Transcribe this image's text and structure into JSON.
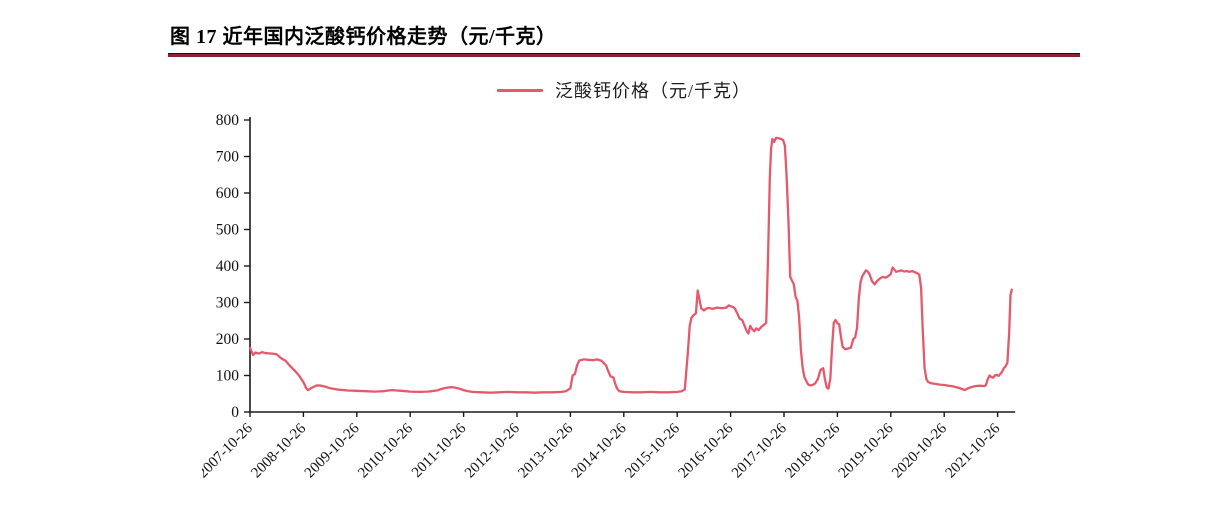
{
  "figure": {
    "title": "图 17 近年国内泛酸钙价格走势（元/千克）",
    "accent_rule_color": "#8e2132"
  },
  "chart_data": {
    "type": "line",
    "title": "图 17 近年国内泛酸钙价格走势（元/千克）",
    "xlabel": "",
    "ylabel": "",
    "ylim": [
      0,
      800
    ],
    "y_ticks": [
      0,
      100,
      200,
      300,
      400,
      500,
      600,
      700,
      800
    ],
    "grid": false,
    "legend": {
      "position": "top-center",
      "entries": [
        "泛酸钙价格（元/千克）"
      ]
    },
    "x_tick_labels": [
      "2007-10-26",
      "2008-10-26",
      "2009-10-26",
      "2010-10-26",
      "2011-10-26",
      "2012-10-26",
      "2013-10-26",
      "2014-10-26",
      "2015-10-26",
      "2016-10-26",
      "2017-10-26",
      "2018-10-26",
      "2019-10-26",
      "2020-10-26",
      "2021-10-26"
    ],
    "x_tick_interval_months": 12,
    "x_range_months": [
      0,
      171.5
    ],
    "series": [
      {
        "name": "泛酸钙价格（元/千克）",
        "color": "#e4596b",
        "x_unit": "months since 2007-10-26",
        "points": [
          [
            0,
            176
          ],
          [
            0.7,
            156
          ],
          [
            1.2,
            163
          ],
          [
            2,
            160
          ],
          [
            2.7,
            164
          ],
          [
            3.5,
            161
          ],
          [
            5,
            160
          ],
          [
            6,
            158
          ],
          [
            7,
            147
          ],
          [
            8,
            140
          ],
          [
            9,
            126
          ],
          [
            10,
            114
          ],
          [
            11,
            100
          ],
          [
            12,
            82
          ],
          [
            12.6,
            66
          ],
          [
            13,
            60
          ],
          [
            14,
            67
          ],
          [
            15,
            73
          ],
          [
            16,
            72
          ],
          [
            17,
            69
          ],
          [
            18,
            65
          ],
          [
            19,
            63
          ],
          [
            20,
            61
          ],
          [
            22,
            59
          ],
          [
            24,
            58
          ],
          [
            26,
            57
          ],
          [
            28,
            56
          ],
          [
            30,
            57
          ],
          [
            31,
            59
          ],
          [
            32,
            60
          ],
          [
            33,
            59
          ],
          [
            34,
            58
          ],
          [
            36,
            56
          ],
          [
            38,
            55
          ],
          [
            40,
            56
          ],
          [
            42,
            59
          ],
          [
            43,
            63
          ],
          [
            44,
            66
          ],
          [
            45,
            68
          ],
          [
            46,
            67
          ],
          [
            47,
            64
          ],
          [
            48,
            60
          ],
          [
            49,
            57
          ],
          [
            50,
            55
          ],
          [
            52,
            54
          ],
          [
            54,
            53
          ],
          [
            56,
            54
          ],
          [
            58,
            55
          ],
          [
            60,
            54
          ],
          [
            62,
            54
          ],
          [
            64,
            53
          ],
          [
            66,
            54
          ],
          [
            68,
            54
          ],
          [
            70,
            55
          ],
          [
            71,
            57
          ],
          [
            72,
            65
          ],
          [
            72.5,
            100
          ],
          [
            73,
            104
          ],
          [
            73.5,
            128
          ],
          [
            74,
            141
          ],
          [
            75,
            144
          ],
          [
            76,
            143
          ],
          [
            77,
            142
          ],
          [
            78,
            144
          ],
          [
            79,
            140
          ],
          [
            80,
            128
          ],
          [
            80.5,
            112
          ],
          [
            81,
            98
          ],
          [
            81.7,
            94
          ],
          [
            82,
            80
          ],
          [
            82.5,
            64
          ],
          [
            83,
            57
          ],
          [
            84,
            55
          ],
          [
            86,
            54
          ],
          [
            88,
            54
          ],
          [
            90,
            55
          ],
          [
            92,
            54
          ],
          [
            94,
            54
          ],
          [
            96,
            55
          ],
          [
            97,
            57
          ],
          [
            97.7,
            62
          ],
          [
            98,
            105
          ],
          [
            98.4,
            165
          ],
          [
            98.8,
            235
          ],
          [
            99.2,
            258
          ],
          [
            99.7,
            266
          ],
          [
            100.2,
            270
          ],
          [
            100.6,
            333
          ],
          [
            101,
            308
          ],
          [
            101.4,
            284
          ],
          [
            102,
            278
          ],
          [
            102.5,
            283
          ],
          [
            103,
            285
          ],
          [
            104,
            283
          ],
          [
            105,
            286
          ],
          [
            106,
            284
          ],
          [
            107,
            286
          ],
          [
            107.6,
            292
          ],
          [
            108,
            290
          ],
          [
            108.6,
            287
          ],
          [
            109,
            283
          ],
          [
            109.6,
            268
          ],
          [
            110,
            256
          ],
          [
            110.6,
            252
          ],
          [
            111,
            240
          ],
          [
            111.6,
            222
          ],
          [
            112,
            215
          ],
          [
            112.4,
            236
          ],
          [
            112.8,
            228
          ],
          [
            113.3,
            221
          ],
          [
            113.8,
            229
          ],
          [
            114.3,
            224
          ],
          [
            114.8,
            232
          ],
          [
            115.4,
            238
          ],
          [
            116,
            244
          ],
          [
            116.4,
            420
          ],
          [
            116.8,
            640
          ],
          [
            117.1,
            722
          ],
          [
            117.4,
            748
          ],
          [
            117.8,
            740
          ],
          [
            118.2,
            751
          ],
          [
            118.8,
            750
          ],
          [
            119.4,
            748
          ],
          [
            119.8,
            745
          ],
          [
            120.2,
            730
          ],
          [
            120.6,
            640
          ],
          [
            121,
            520
          ],
          [
            121.4,
            370
          ],
          [
            121.8,
            360
          ],
          [
            122.2,
            350
          ],
          [
            122.6,
            315
          ],
          [
            123,
            305
          ],
          [
            123.4,
            260
          ],
          [
            123.8,
            170
          ],
          [
            124.2,
            120
          ],
          [
            124.6,
            95
          ],
          [
            125,
            85
          ],
          [
            125.4,
            76
          ],
          [
            125.8,
            73
          ],
          [
            126.4,
            74
          ],
          [
            127,
            78
          ],
          [
            127.6,
            90
          ],
          [
            128.2,
            115
          ],
          [
            128.8,
            120
          ],
          [
            129.2,
            90
          ],
          [
            129.6,
            67
          ],
          [
            130,
            64
          ],
          [
            130.4,
            90
          ],
          [
            130.8,
            180
          ],
          [
            131.2,
            245
          ],
          [
            131.6,
            252
          ],
          [
            132,
            243
          ],
          [
            132.4,
            240
          ],
          [
            132.8,
            205
          ],
          [
            133.2,
            178
          ],
          [
            133.8,
            172
          ],
          [
            134.4,
            174
          ],
          [
            135,
            176
          ],
          [
            135.6,
            200
          ],
          [
            136,
            205
          ],
          [
            136.4,
            230
          ],
          [
            136.8,
            310
          ],
          [
            137.2,
            355
          ],
          [
            137.6,
            372
          ],
          [
            138,
            380
          ],
          [
            138.4,
            388
          ],
          [
            138.8,
            385
          ],
          [
            139.2,
            378
          ],
          [
            139.8,
            358
          ],
          [
            140.4,
            350
          ],
          [
            141,
            360
          ],
          [
            141.6,
            366
          ],
          [
            142.2,
            370
          ],
          [
            142.8,
            368
          ],
          [
            143.4,
            372
          ],
          [
            144,
            378
          ],
          [
            144.4,
            396
          ],
          [
            144.8,
            390
          ],
          [
            145.2,
            384
          ],
          [
            145.8,
            386
          ],
          [
            146.4,
            388
          ],
          [
            147,
            385
          ],
          [
            147.6,
            386
          ],
          [
            148.2,
            384
          ],
          [
            148.8,
            386
          ],
          [
            149.4,
            383
          ],
          [
            150,
            380
          ],
          [
            150.4,
            376
          ],
          [
            150.8,
            340
          ],
          [
            151.2,
            220
          ],
          [
            151.6,
            120
          ],
          [
            152,
            90
          ],
          [
            152.4,
            82
          ],
          [
            153,
            79
          ],
          [
            154,
            77
          ],
          [
            155,
            75
          ],
          [
            156,
            74
          ],
          [
            157,
            72
          ],
          [
            158,
            70
          ],
          [
            159,
            67
          ],
          [
            160,
            63
          ],
          [
            160.6,
            60
          ],
          [
            161,
            63
          ],
          [
            162,
            68
          ],
          [
            163,
            71
          ],
          [
            164,
            72
          ],
          [
            165,
            71
          ],
          [
            165.4,
            74
          ],
          [
            165.8,
            90
          ],
          [
            166.2,
            100
          ],
          [
            166.6,
            96
          ],
          [
            167,
            94
          ],
          [
            167.4,
            100
          ],
          [
            167.8,
            102
          ],
          [
            168.2,
            99
          ],
          [
            168.6,
            104
          ],
          [
            169,
            110
          ],
          [
            169.4,
            120
          ],
          [
            169.8,
            125
          ],
          [
            170.2,
            135
          ],
          [
            170.6,
            220
          ],
          [
            170.9,
            320
          ],
          [
            171.2,
            335
          ]
        ]
      }
    ]
  }
}
